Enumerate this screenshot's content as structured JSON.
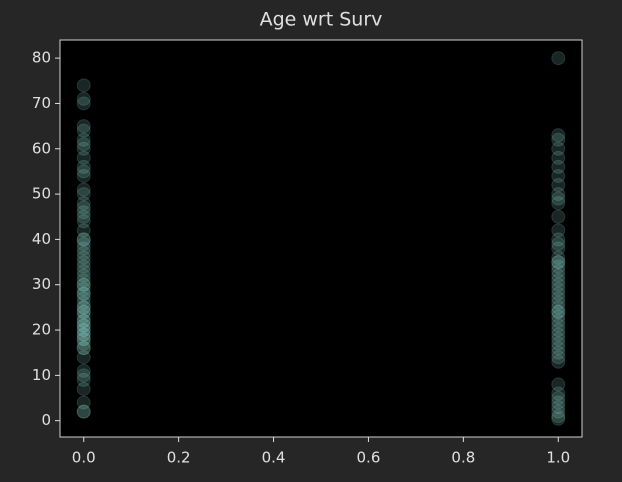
{
  "chart_data": {
    "type": "scatter",
    "title": "Age wrt Surv",
    "x": [
      0,
      0,
      0,
      0,
      0,
      0,
      0,
      0,
      0,
      0,
      0,
      0,
      0,
      0,
      0,
      0,
      0,
      0,
      0,
      0,
      0,
      0,
      0,
      0,
      0,
      0,
      0,
      0,
      0,
      0,
      0,
      0,
      0,
      0,
      0,
      0,
      0,
      0,
      0,
      0,
      0,
      0,
      0,
      0,
      0,
      0,
      0,
      0,
      0,
      0,
      0,
      0,
      0,
      0,
      0,
      0,
      0,
      0,
      0,
      0,
      0,
      0,
      0,
      0,
      1,
      1,
      1,
      1,
      1,
      1,
      1,
      1,
      1,
      1,
      1,
      1,
      1,
      1,
      1,
      1,
      1,
      1,
      1,
      1,
      1,
      1,
      1,
      1,
      1,
      1,
      1,
      1,
      1,
      1,
      1,
      1,
      1,
      1,
      1,
      1,
      1,
      1,
      1,
      1,
      1,
      1,
      1,
      1,
      1,
      1,
      1,
      1,
      1,
      1
    ],
    "values": [
      2,
      2,
      4,
      7,
      9,
      10,
      11,
      14,
      16,
      16,
      17,
      18,
      18,
      19,
      19,
      20,
      20,
      21,
      21,
      22,
      22,
      23,
      24,
      24,
      25,
      25,
      26,
      27,
      28,
      28,
      29,
      30,
      30,
      31,
      32,
      33,
      34,
      35,
      36,
      37,
      38,
      39,
      40,
      40,
      42,
      44,
      45,
      46,
      47,
      48,
      50,
      51,
      54,
      55,
      56,
      58,
      60,
      61,
      62,
      64,
      65,
      70,
      71,
      74,
      0.42,
      1,
      2,
      3,
      4,
      5,
      6,
      8,
      13,
      14,
      15,
      16,
      17,
      18,
      19,
      20,
      21,
      22,
      23,
      24,
      24,
      25,
      26,
      27,
      28,
      29,
      30,
      31,
      32,
      33,
      34,
      35,
      35,
      36,
      38,
      39,
      40,
      42,
      45,
      48,
      49,
      50,
      52,
      54,
      56,
      58,
      60,
      62,
      63,
      80
    ],
    "color": "#8dd3c7",
    "xlim": [
      -0.05,
      1.05
    ],
    "xticks": [
      {
        "value": 0,
        "label": "0.0"
      },
      {
        "value": 0.2,
        "label": "0.2"
      },
      {
        "value": 0.4,
        "label": "0.4"
      },
      {
        "value": 0.6,
        "label": "0.6"
      },
      {
        "value": 0.8,
        "label": "0.8"
      },
      {
        "value": 1,
        "label": "1.0"
      }
    ],
    "ylim": [
      -3.6,
      84
    ],
    "yticks": [
      0,
      10,
      20,
      30,
      40,
      50,
      60,
      70,
      80
    ]
  }
}
